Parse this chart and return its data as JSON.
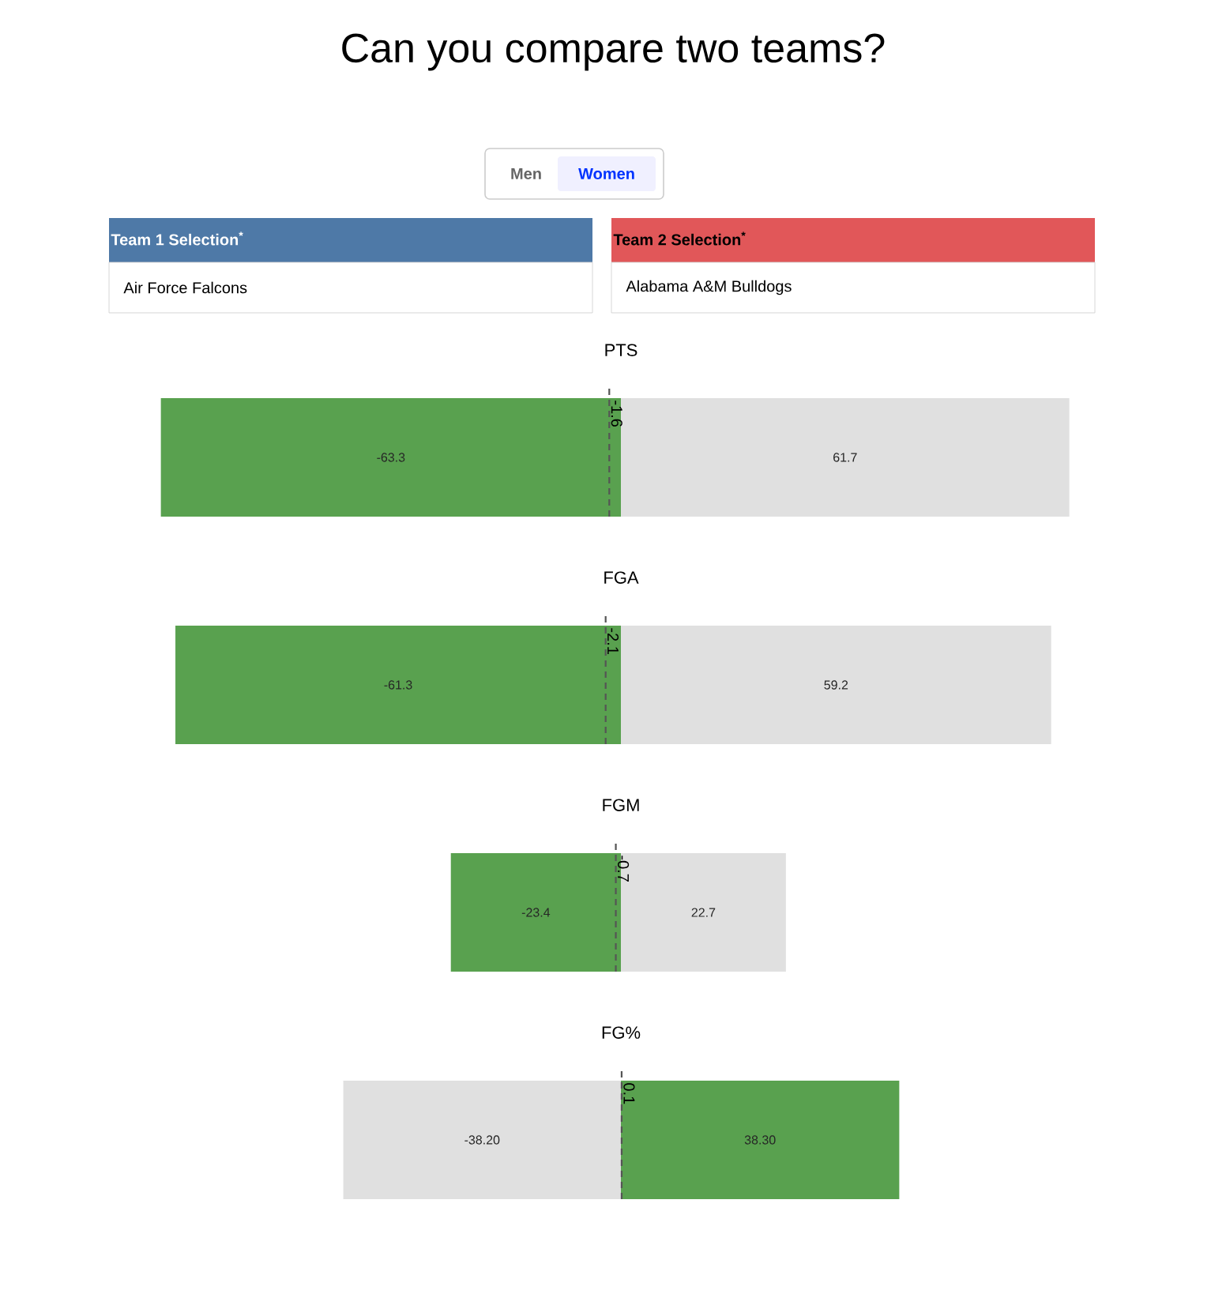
{
  "chart_data": [
    {
      "type": "other",
      "title": "Can you compare two teams?",
      "annotations": [
        "Men",
        "Women",
        "Team 1 Selection$^{*}$",
        "Air Force Falcons",
        "Team 2 Selection$^{*}$",
        "Alabama A&M Bulldogs"
      ]
    },
    {
      "type": "bar",
      "title": "PTS",
      "orientation": "horizontal",
      "stacked": true,
      "categories": [
        null
      ],
      "series": [
        {
          "color": "#59a14f",
          "values": [
            -63.3
          ],
          "value_labels": [
            "-63.3"
          ]
        },
        {
          "color": "#e0e0e0",
          "values": [
            61.7
          ],
          "value_labels": [
            "61.7"
          ]
        }
      ],
      "ref_lines": [
        {
          "axis": "x",
          "value": -1.6,
          "label": "-1.6",
          "color": "#555555",
          "line_style": "dashed"
        }
      ]
    },
    {
      "type": "bar",
      "title": "FGA",
      "orientation": "horizontal",
      "stacked": true,
      "categories": [
        null
      ],
      "series": [
        {
          "color": "#59a14f",
          "values": [
            -61.3
          ],
          "value_labels": [
            "-61.3"
          ]
        },
        {
          "color": "#e0e0e0",
          "values": [
            59.2
          ],
          "value_labels": [
            "59.2"
          ]
        }
      ],
      "ref_lines": [
        {
          "axis": "x",
          "value": -2.1,
          "label": "-2.1",
          "color": "#555555",
          "line_style": "dashed"
        }
      ]
    },
    {
      "type": "bar",
      "title": "FGM",
      "orientation": "horizontal",
      "stacked": true,
      "categories": [
        null
      ],
      "series": [
        {
          "color": "#59a14f",
          "values": [
            -23.4
          ],
          "value_labels": [
            "-23.4"
          ]
        },
        {
          "color": "#e0e0e0",
          "values": [
            22.7
          ],
          "value_labels": [
            "22.7"
          ]
        }
      ],
      "ref_lines": [
        {
          "axis": "x",
          "value": -0.7,
          "label": "-0.7",
          "color": "#555555",
          "line_style": "dashed"
        }
      ]
    },
    {
      "type": "bar",
      "title": "FG%",
      "orientation": "horizontal",
      "stacked": true,
      "categories": [
        null
      ],
      "series": [
        {
          "color": "#e0e0e0",
          "values": [
            -38.2
          ],
          "value_labels": [
            "-38.20"
          ]
        },
        {
          "color": "#59a14f",
          "values": [
            38.3
          ],
          "value_labels": [
            "38.30"
          ]
        }
      ],
      "ref_lines": [
        {
          "axis": "x",
          "value": 0.1,
          "label": "0.1",
          "color": "#555555",
          "line_style": "dashed"
        }
      ]
    }
  ]
}
